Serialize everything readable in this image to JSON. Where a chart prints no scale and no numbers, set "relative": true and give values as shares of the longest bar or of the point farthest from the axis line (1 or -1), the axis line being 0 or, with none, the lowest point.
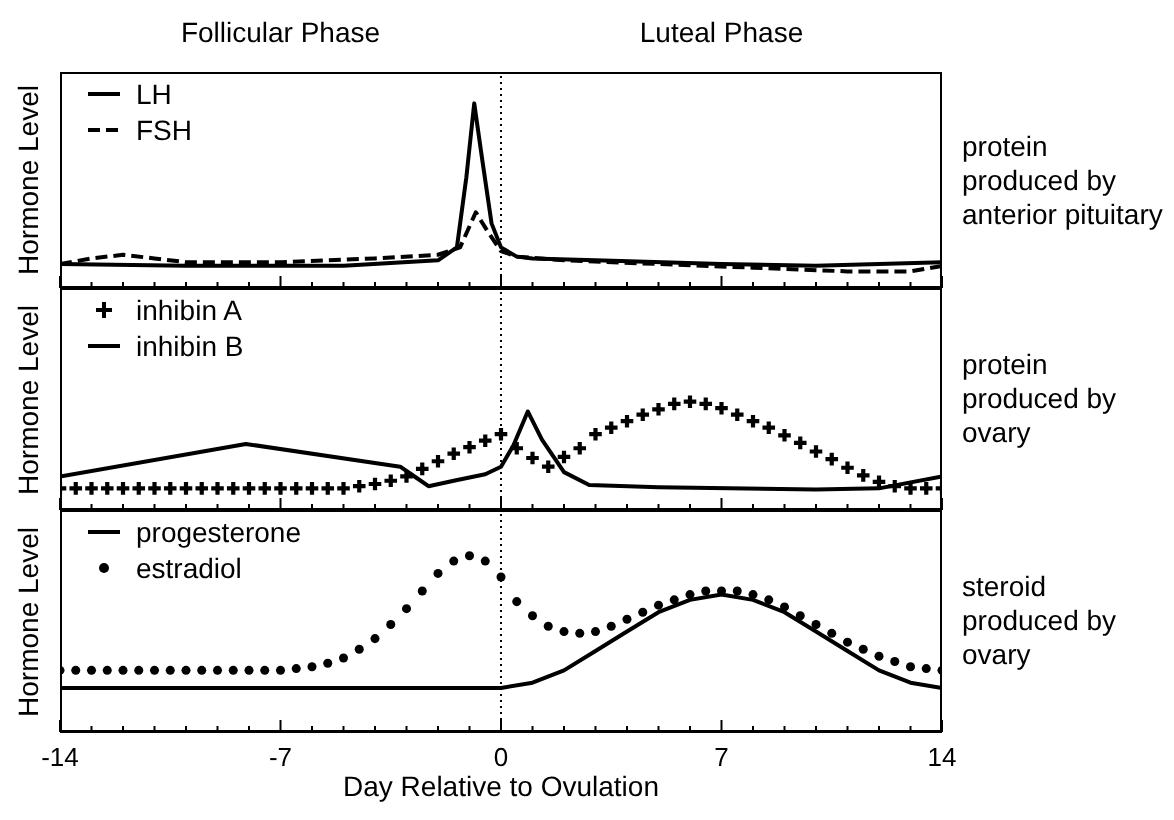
{
  "chart_data": [
    {
      "type": "line",
      "relative": true,
      "ylabel": "Hormone Level",
      "legend": "top left",
      "tick_labels": false,
      "xlim": [
        -14,
        14
      ],
      "xticks": [
        -14,
        {
          "value": -13,
          "label": null
        },
        {
          "value": -12,
          "label": null
        },
        {
          "value": -11,
          "label": null
        },
        {
          "value": -10,
          "label": null
        },
        {
          "value": -9,
          "label": null
        },
        {
          "value": -8,
          "label": null
        },
        -7,
        {
          "value": -6,
          "label": null
        },
        {
          "value": -5,
          "label": null
        },
        {
          "value": -4,
          "label": null
        },
        {
          "value": -3,
          "label": null
        },
        {
          "value": -2,
          "label": null
        },
        {
          "value": -1,
          "label": null
        },
        0,
        {
          "value": 1,
          "label": null
        },
        {
          "value": 2,
          "label": null
        },
        {
          "value": 3,
          "label": null
        },
        {
          "value": 4,
          "label": null
        },
        {
          "value": 5,
          "label": null
        },
        {
          "value": 6,
          "label": null
        },
        7,
        {
          "value": 8,
          "label": null
        },
        {
          "value": 9,
          "label": null
        },
        {
          "value": 10,
          "label": null
        },
        {
          "value": 11,
          "label": null
        },
        {
          "value": 12,
          "label": null
        },
        {
          "value": 13,
          "label": null
        },
        14
      ],
      "ref_lines": [
        {
          "axis": "x",
          "value": 0,
          "line_style": "dotted",
          "color": "#000000"
        }
      ],
      "annotations": [
        "Follicular Phase",
        "Luteal Phase",
        "protein\nproduced by\nanterior pituitary"
      ],
      "series": [
        {
          "name": "LH",
          "type": "line",
          "color": "#000000",
          "line_style": "solid",
          "x": [
            -14,
            -10,
            -5,
            -2,
            -1.4,
            -1.1,
            -0.85,
            -0.6,
            -0.3,
            0,
            0.5,
            1,
            3,
            7,
            10,
            14
          ],
          "values": [
            0.13,
            0.12,
            0.12,
            0.15,
            0.22,
            0.6,
            1,
            0.7,
            0.35,
            0.22,
            0.17,
            0.16,
            0.15,
            0.13,
            0.12,
            0.14
          ]
        },
        {
          "name": "FSH",
          "type": "line",
          "color": "#000000",
          "line_style": "dashed",
          "x": [
            -14,
            -13,
            -12,
            -11,
            -10,
            -7,
            -4,
            -2,
            -1.3,
            -0.8,
            -0.4,
            0,
            0.5,
            2,
            5,
            8,
            11,
            13,
            14
          ],
          "values": [
            0.13,
            0.16,
            0.18,
            0.16,
            0.14,
            0.14,
            0.16,
            0.18,
            0.22,
            0.41,
            0.3,
            0.2,
            0.17,
            0.15,
            0.13,
            0.11,
            0.09,
            0.09,
            0.12
          ]
        }
      ]
    },
    {
      "type": "line",
      "relative": true,
      "ylabel": "Hormone Level",
      "legend": "top left",
      "tick_labels": false,
      "xlim": [
        -14,
        14
      ],
      "xticks": [
        -14,
        {
          "value": -13,
          "label": null
        },
        {
          "value": -12,
          "label": null
        },
        {
          "value": -11,
          "label": null
        },
        {
          "value": -10,
          "label": null
        },
        {
          "value": -9,
          "label": null
        },
        {
          "value": -8,
          "label": null
        },
        -7,
        {
          "value": -6,
          "label": null
        },
        {
          "value": -5,
          "label": null
        },
        {
          "value": -4,
          "label": null
        },
        {
          "value": -3,
          "label": null
        },
        {
          "value": -2,
          "label": null
        },
        {
          "value": -1,
          "label": null
        },
        0,
        {
          "value": 1,
          "label": null
        },
        {
          "value": 2,
          "label": null
        },
        {
          "value": 3,
          "label": null
        },
        {
          "value": 4,
          "label": null
        },
        {
          "value": 5,
          "label": null
        },
        {
          "value": 6,
          "label": null
        },
        7,
        {
          "value": 8,
          "label": null
        },
        {
          "value": 9,
          "label": null
        },
        {
          "value": 10,
          "label": null
        },
        {
          "value": 11,
          "label": null
        },
        {
          "value": 12,
          "label": null
        },
        {
          "value": 13,
          "label": null
        },
        14
      ],
      "ref_lines": [
        {
          "axis": "x",
          "value": 0,
          "line_style": "dotted",
          "color": "#000000"
        }
      ],
      "annotations": [
        "protein\nproduced by\novary"
      ],
      "series": [
        {
          "name": "inhibin A",
          "type": "scatter",
          "marker": "cross",
          "color": "#000000",
          "x": [
            -14,
            -13.5,
            -13,
            -12.5,
            -12,
            -11.5,
            -11,
            -10.5,
            -10,
            -9.5,
            -9,
            -8.5,
            -8,
            -7.5,
            -7,
            -6.5,
            -6,
            -5.5,
            -5,
            -4.5,
            -4,
            -3.5,
            -3,
            -2.5,
            -2,
            -1.5,
            -1,
            -0.5,
            0,
            0.5,
            1,
            1.5,
            2,
            2.5,
            3,
            3.5,
            4,
            4.5,
            5,
            5.5,
            6,
            6.5,
            7,
            7.5,
            8,
            8.5,
            9,
            9.5,
            10,
            10.5,
            11,
            11.5,
            12,
            12.5,
            13,
            13.5,
            14
          ],
          "values": [
            0.2,
            0.2,
            0.2,
            0.2,
            0.2,
            0.2,
            0.2,
            0.2,
            0.2,
            0.2,
            0.2,
            0.2,
            0.2,
            0.2,
            0.2,
            0.2,
            0.2,
            0.2,
            0.2,
            0.22,
            0.24,
            0.27,
            0.31,
            0.38,
            0.45,
            0.52,
            0.58,
            0.64,
            0.7,
            0.57,
            0.48,
            0.4,
            0.49,
            0.57,
            0.7,
            0.76,
            0.82,
            0.88,
            0.93,
            0.98,
            1,
            0.98,
            0.94,
            0.88,
            0.82,
            0.76,
            0.69,
            0.62,
            0.54,
            0.47,
            0.39,
            0.32,
            0.26,
            0.22,
            0.2,
            0.2,
            0.2
          ]
        },
        {
          "name": "inhibin B",
          "type": "line",
          "color": "#000000",
          "line_style": "solid",
          "x": [
            -14,
            -8.1,
            -3.2,
            -2.7,
            -2.3,
            -1.5,
            -0.5,
            0,
            0.4,
            0.85,
            1.3,
            2,
            2.8,
            5,
            10,
            12,
            14
          ],
          "values": [
            0.31,
            0.61,
            0.4,
            0.3,
            0.22,
            0.27,
            0.33,
            0.4,
            0.6,
            0.91,
            0.65,
            0.35,
            0.23,
            0.21,
            0.19,
            0.2,
            0.31
          ]
        }
      ]
    },
    {
      "type": "line",
      "relative": true,
      "ylabel": "Hormone Level",
      "xlabel": "Day Relative to Ovulation",
      "legend": "top left",
      "tick_labels": "x",
      "xlim": [
        -14,
        14
      ],
      "xticks": [
        -14,
        {
          "value": -13,
          "label": null
        },
        {
          "value": -12,
          "label": null
        },
        {
          "value": -11,
          "label": null
        },
        {
          "value": -10,
          "label": null
        },
        {
          "value": -9,
          "label": null
        },
        {
          "value": -8,
          "label": null
        },
        -7,
        {
          "value": -6,
          "label": null
        },
        {
          "value": -5,
          "label": null
        },
        {
          "value": -4,
          "label": null
        },
        {
          "value": -3,
          "label": null
        },
        {
          "value": -2,
          "label": null
        },
        {
          "value": -1,
          "label": null
        },
        0,
        {
          "value": 1,
          "label": null
        },
        {
          "value": 2,
          "label": null
        },
        {
          "value": 3,
          "label": null
        },
        {
          "value": 4,
          "label": null
        },
        {
          "value": 5,
          "label": null
        },
        {
          "value": 6,
          "label": null
        },
        7,
        {
          "value": 8,
          "label": null
        },
        {
          "value": 9,
          "label": null
        },
        {
          "value": 10,
          "label": null
        },
        {
          "value": 11,
          "label": null
        },
        {
          "value": 12,
          "label": null
        },
        {
          "value": 13,
          "label": null
        },
        14
      ],
      "ref_lines": [
        {
          "axis": "x",
          "value": 0,
          "line_style": "dotted",
          "color": "#000000"
        }
      ],
      "annotations": [
        "steroid\nproduced by\novary"
      ],
      "series": [
        {
          "name": "progesterone",
          "type": "line",
          "color": "#000000",
          "line_style": "solid",
          "x": [
            -14,
            0,
            1,
            2,
            3,
            4,
            5,
            6,
            7,
            8,
            9,
            10,
            11,
            12,
            13,
            14
          ],
          "values": [
            0.25,
            0.25,
            0.28,
            0.35,
            0.46,
            0.57,
            0.68,
            0.75,
            0.78,
            0.75,
            0.68,
            0.57,
            0.46,
            0.35,
            0.28,
            0.25
          ]
        },
        {
          "name": "estradiol",
          "type": "scatter",
          "marker": "circle",
          "color": "#000000",
          "x": [
            -14,
            -13.5,
            -13,
            -12.5,
            -12,
            -11.5,
            -11,
            -10.5,
            -10,
            -9.5,
            -9,
            -8.5,
            -8,
            -7.5,
            -7,
            -6.5,
            -6,
            -5.5,
            -5,
            -4.5,
            -4,
            -3.5,
            -3,
            -2.5,
            -2,
            -1.5,
            -1,
            -0.5,
            0,
            0.5,
            1,
            1.5,
            2,
            2.5,
            3,
            3.5,
            4,
            4.5,
            5,
            5.5,
            6,
            6.5,
            7,
            7.5,
            8,
            8.5,
            9,
            9.5,
            10,
            10.5,
            11,
            11.5,
            12,
            12.5,
            13,
            13.5,
            14
          ],
          "values": [
            0.35,
            0.35,
            0.35,
            0.35,
            0.35,
            0.35,
            0.35,
            0.35,
            0.35,
            0.35,
            0.35,
            0.35,
            0.35,
            0.35,
            0.35,
            0.36,
            0.37,
            0.39,
            0.42,
            0.47,
            0.53,
            0.61,
            0.7,
            0.8,
            0.9,
            0.97,
            1,
            0.97,
            0.88,
            0.74,
            0.66,
            0.6,
            0.57,
            0.56,
            0.57,
            0.6,
            0.64,
            0.68,
            0.72,
            0.75,
            0.78,
            0.8,
            0.8,
            0.8,
            0.78,
            0.75,
            0.71,
            0.66,
            0.61,
            0.56,
            0.51,
            0.47,
            0.43,
            0.4,
            0.37,
            0.36,
            0.35
          ]
        }
      ]
    }
  ]
}
